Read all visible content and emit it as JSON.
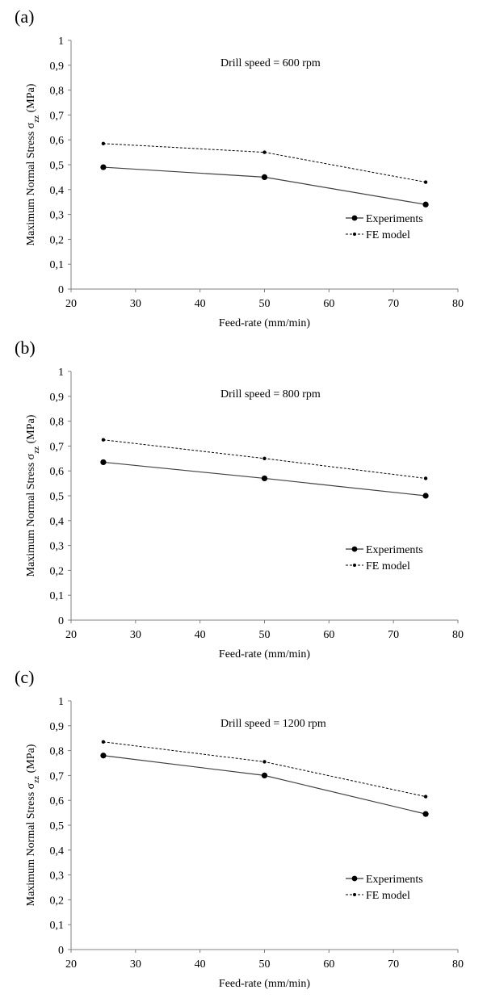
{
  "chart_data": [
    {
      "panel": "(a)",
      "type": "line",
      "annotation": "Drill speed = 600 rpm",
      "xlabel": "Feed-rate (mm/min)",
      "ylabel_main": "Maximum Normal Stress σ",
      "ylabel_sub": "zz",
      "ylabel_unit": " (MPa)",
      "xlim": [
        20,
        80
      ],
      "ylim": [
        0,
        1
      ],
      "xticks": [
        "20",
        "30",
        "40",
        "50",
        "60",
        "70",
        "80"
      ],
      "yticks": [
        "0",
        "0,1",
        "0,2",
        "0,3",
        "0,4",
        "0,5",
        "0,6",
        "0,7",
        "0,8",
        "0,9",
        "1"
      ],
      "x": [
        25,
        50,
        75
      ],
      "series": [
        {
          "name": "Experiments",
          "values": [
            0.49,
            0.45,
            0.34
          ],
          "style": "solid"
        },
        {
          "name": "FE model",
          "values": [
            0.585,
            0.55,
            0.43
          ],
          "style": "dashed"
        }
      ],
      "legend": "right",
      "grid": false
    },
    {
      "panel": "(b)",
      "type": "line",
      "annotation": "Drill speed = 800 rpm",
      "xlabel": "Feed-rate (mm/min)",
      "ylabel_main": "Maximum Normal Stress σ",
      "ylabel_sub": "zz",
      "ylabel_unit": " (MPa)",
      "xlim": [
        20,
        80
      ],
      "ylim": [
        0,
        1
      ],
      "xticks": [
        "20",
        "30",
        "40",
        "50",
        "60",
        "70",
        "80"
      ],
      "yticks": [
        "0",
        "0,1",
        "0,2",
        "0,3",
        "0,4",
        "0,5",
        "0,6",
        "0,7",
        "0,8",
        "0,9",
        "1"
      ],
      "x": [
        25,
        50,
        75
      ],
      "series": [
        {
          "name": "Experiments",
          "values": [
            0.635,
            0.57,
            0.5
          ],
          "style": "solid"
        },
        {
          "name": "FE model",
          "values": [
            0.725,
            0.65,
            0.57
          ],
          "style": "dashed"
        }
      ],
      "legend": "right",
      "grid": false
    },
    {
      "panel": "(c)",
      "type": "line",
      "annotation": "Drill speed = 1200 rpm",
      "xlabel": "Feed-rate (mm/min)",
      "ylabel_main": "Maximum Normal Stress σ",
      "ylabel_sub": "zz",
      "ylabel_unit": " (MPa)",
      "xlim": [
        20,
        80
      ],
      "ylim": [
        0,
        1
      ],
      "xticks": [
        "20",
        "30",
        "40",
        "50",
        "60",
        "70",
        "80"
      ],
      "yticks": [
        "0",
        "0,1",
        "0,2",
        "0,3",
        "0,4",
        "0,5",
        "0,6",
        "0,7",
        "0,8",
        "0,9",
        "1"
      ],
      "x": [
        25,
        50,
        75
      ],
      "series": [
        {
          "name": "Experiments",
          "values": [
            0.78,
            0.7,
            0.545
          ],
          "style": "solid"
        },
        {
          "name": "FE model",
          "values": [
            0.835,
            0.755,
            0.615
          ],
          "style": "dashed"
        }
      ],
      "legend": "right",
      "grid": false
    }
  ]
}
